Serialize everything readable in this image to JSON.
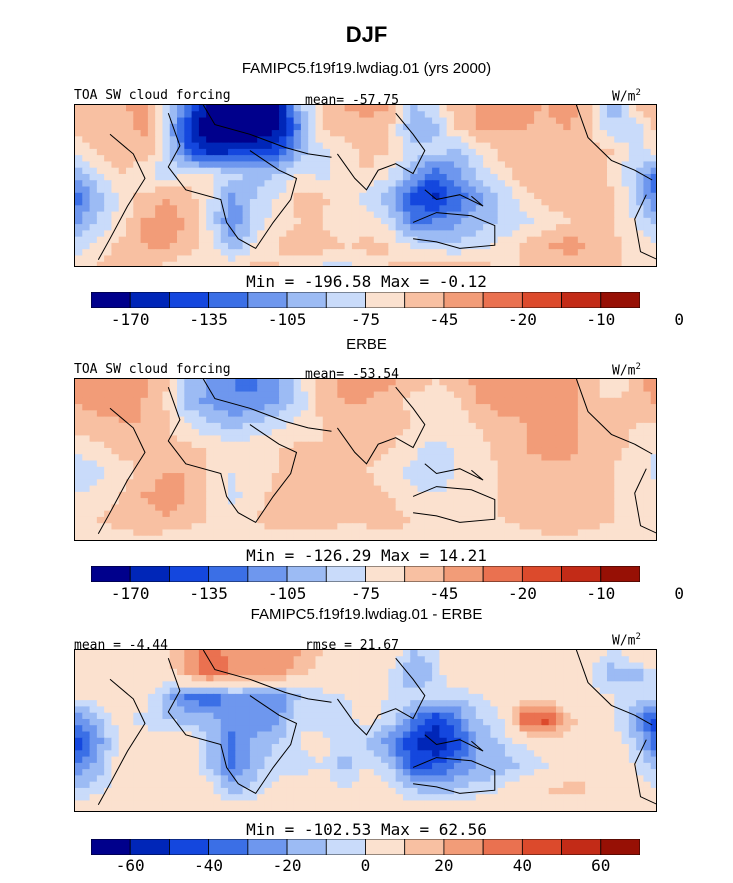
{
  "figure": {
    "title": "DJF",
    "top_title": "FAMIPC5.f19f19.lwdiag.01 (yrs 2000)",
    "units": "W/m",
    "units_sup": "2"
  },
  "palette": [
    "#00008c",
    "#0026b8",
    "#1447de",
    "#3b6fe6",
    "#6e97ee",
    "#9cbbf4",
    "#c9dbfa",
    "#fbe1cf",
    "#f8c0a2",
    "#f29c78",
    "#ea7150",
    "#dc4a2c",
    "#c32b17",
    "#971005"
  ],
  "chart_data": [
    {
      "type": "heatmap",
      "name": "model",
      "label": "TOA SW cloud forcing",
      "mean_text": "mean= -57.75",
      "min_max": "Min = -196.58 Max = -0.12",
      "colorbar_ticks": [
        "-170",
        "-135",
        "-105",
        "-75",
        "-45",
        "-20",
        "-10",
        "0"
      ],
      "field": [
        [
          -45,
          -45,
          -50,
          -30,
          -70,
          -120,
          -180,
          -185,
          -185,
          -170,
          -95,
          -60,
          -45,
          -40,
          -40,
          -90,
          -80,
          -50,
          -45,
          -40,
          -40,
          -45,
          -35,
          -60,
          -100,
          -60,
          -40
        ],
        [
          -55,
          -50,
          -60,
          -40,
          -85,
          -150,
          -190,
          -195,
          -195,
          -170,
          -120,
          -60,
          -50,
          -50,
          -60,
          -100,
          -95,
          -60,
          -45,
          -45,
          -45,
          -50,
          -45,
          -60,
          -90,
          -85,
          -55
        ],
        [
          -70,
          -60,
          -50,
          -45,
          -80,
          -130,
          -160,
          -150,
          -150,
          -140,
          -100,
          -80,
          -70,
          -55,
          -60,
          -80,
          -85,
          -95,
          -75,
          -55,
          -50,
          -45,
          -60,
          -50,
          -60,
          -80,
          -70
        ],
        [
          -100,
          -80,
          -60,
          -75,
          -80,
          -75,
          -70,
          -85,
          -95,
          -90,
          -70,
          -80,
          -70,
          -60,
          -75,
          -100,
          -135,
          -110,
          -85,
          -70,
          -50,
          -45,
          -45,
          -55,
          -65,
          -90,
          -130
        ],
        [
          -130,
          -100,
          -70,
          -55,
          -45,
          -50,
          -75,
          -110,
          -90,
          -75,
          -55,
          -55,
          -70,
          -80,
          -100,
          -140,
          -155,
          -130,
          -110,
          -90,
          -70,
          -55,
          -50,
          -50,
          -55,
          -85,
          -125
        ],
        [
          -110,
          -90,
          -70,
          -45,
          -40,
          -45,
          -80,
          -120,
          -85,
          -65,
          -60,
          -60,
          -75,
          -65,
          -80,
          -120,
          -120,
          -110,
          -95,
          -90,
          -80,
          -70,
          -60,
          -55,
          -60,
          -75,
          -95
        ],
        [
          -85,
          -70,
          -55,
          -45,
          -40,
          -50,
          -65,
          -100,
          -75,
          -60,
          -50,
          -50,
          -60,
          -55,
          -60,
          -80,
          -85,
          -90,
          -80,
          -70,
          -55,
          -45,
          -40,
          -45,
          -55,
          -65,
          -75
        ],
        [
          -70,
          -60,
          -50,
          -55,
          -65,
          -75,
          -70,
          -60,
          -55,
          -60,
          -70,
          -80,
          -80,
          -70,
          -60,
          -55,
          -50,
          -50,
          -55,
          -60,
          -60,
          -55,
          -50,
          -55,
          -60,
          -60,
          -60
        ]
      ]
    },
    {
      "type": "heatmap",
      "name": "obs",
      "title": "ERBE",
      "label": "TOA SW cloud forcing",
      "mean_text": "mean= -53.54",
      "min_max": "Min = -126.29 Max = 14.21",
      "colorbar_ticks": [
        "-170",
        "-135",
        "-105",
        "-75",
        "-45",
        "-20",
        "-10",
        "0"
      ],
      "field": [
        [
          -40,
          -40,
          -35,
          -40,
          -55,
          -90,
          -110,
          -120,
          -125,
          -110,
          -80,
          -50,
          -40,
          -40,
          -40,
          -50,
          -60,
          -50,
          -40,
          -35,
          -35,
          -40,
          -35,
          -55,
          -80,
          -50,
          -35
        ],
        [
          -45,
          -40,
          -45,
          -45,
          -60,
          -95,
          -110,
          -120,
          -115,
          -105,
          -85,
          -55,
          -45,
          -45,
          -50,
          -65,
          -70,
          -65,
          -45,
          -40,
          -40,
          -45,
          -40,
          -50,
          -60,
          -55,
          -40
        ],
        [
          -55,
          -50,
          -45,
          -45,
          -55,
          -75,
          -85,
          -95,
          -85,
          -80,
          -70,
          -60,
          -55,
          -50,
          -50,
          -60,
          -65,
          -70,
          -60,
          -50,
          -45,
          -40,
          -45,
          -45,
          -50,
          -60,
          -60
        ],
        [
          -75,
          -65,
          -55,
          -55,
          -55,
          -55,
          -60,
          -70,
          -65,
          -60,
          -55,
          -60,
          -60,
          -55,
          -60,
          -70,
          -80,
          -75,
          -65,
          -55,
          -45,
          -40,
          -40,
          -50,
          -55,
          -65,
          -75
        ],
        [
          -85,
          -80,
          -70,
          -55,
          -45,
          -45,
          -60,
          -75,
          -70,
          -60,
          -50,
          -50,
          -55,
          -60,
          -65,
          -80,
          -85,
          -75,
          -65,
          -60,
          -55,
          -50,
          -50,
          -55,
          -60,
          -70,
          -80
        ],
        [
          -75,
          -70,
          -60,
          -45,
          -40,
          -45,
          -65,
          -80,
          -65,
          -55,
          -50,
          -50,
          -55,
          -55,
          -60,
          -70,
          -75,
          -70,
          -65,
          -60,
          -55,
          -55,
          -55,
          -55,
          -60,
          -65,
          -70
        ],
        [
          -65,
          -60,
          -55,
          -50,
          -45,
          -50,
          -60,
          -65,
          -60,
          -55,
          -50,
          -50,
          -55,
          -55,
          -55,
          -60,
          -65,
          -70,
          -65,
          -60,
          -55,
          -50,
          -50,
          -55,
          -60,
          -60,
          -60
        ],
        [
          -70,
          -70,
          -65,
          -65,
          -70,
          -75,
          -70,
          -65,
          -65,
          -65,
          -70,
          -75,
          -75,
          -70,
          -65,
          -65,
          -60,
          -60,
          -65,
          -70,
          -70,
          -65,
          -65,
          -65,
          -65,
          -65,
          -70
        ]
      ]
    },
    {
      "type": "heatmap",
      "name": "difference",
      "title": "FAMIPC5.f19f19.lwdiag.01 - ERBE",
      "mean_text": "mean = -4.44",
      "rmse_text": "rmse = 21.67",
      "min_max": "Min = -102.53 Max = 62.56",
      "colorbar_ticks": [
        "-60",
        "-40",
        "-20",
        "0",
        "20",
        "40",
        "60"
      ],
      "field": [
        [
          5,
          5,
          10,
          5,
          10,
          25,
          35,
          25,
          20,
          30,
          20,
          10,
          5,
          5,
          5,
          -20,
          -15,
          5,
          5,
          5,
          5,
          5,
          0,
          0,
          -15,
          10,
          5
        ],
        [
          5,
          10,
          10,
          5,
          0,
          20,
          40,
          30,
          30,
          25,
          15,
          5,
          0,
          0,
          -10,
          -30,
          -20,
          5,
          10,
          5,
          5,
          0,
          0,
          -10,
          -25,
          -25,
          -10
        ],
        [
          -10,
          -5,
          5,
          0,
          -25,
          -40,
          -50,
          -35,
          -40,
          -40,
          -20,
          -15,
          -10,
          -5,
          -10,
          -15,
          -15,
          -20,
          -10,
          -5,
          0,
          5,
          -10,
          -5,
          -10,
          -15,
          -20
        ],
        [
          -40,
          -25,
          -5,
          -15,
          -20,
          -25,
          -25,
          -35,
          -40,
          -35,
          -10,
          -15,
          -15,
          -5,
          -15,
          -35,
          -60,
          -40,
          -20,
          -10,
          40,
          45,
          20,
          -5,
          -10,
          -30,
          -60
        ],
        [
          -60,
          -35,
          -5,
          0,
          5,
          0,
          -20,
          -45,
          -25,
          -20,
          -10,
          -5,
          -15,
          -20,
          -35,
          -60,
          -70,
          -55,
          -30,
          -20,
          -10,
          0,
          0,
          5,
          0,
          -20,
          -50
        ],
        [
          -40,
          -25,
          -5,
          5,
          5,
          0,
          -20,
          -45,
          -25,
          -15,
          -15,
          -10,
          -25,
          -10,
          -20,
          -50,
          -50,
          -40,
          -30,
          -25,
          -20,
          -10,
          0,
          5,
          5,
          -10,
          -25
        ],
        [
          -20,
          -15,
          -5,
          0,
          5,
          5,
          -5,
          -25,
          -15,
          -5,
          0,
          5,
          -10,
          0,
          -5,
          -20,
          -25,
          -20,
          -15,
          -10,
          5,
          10,
          15,
          10,
          5,
          -5,
          -10
        ],
        [
          0,
          5,
          10,
          5,
          5,
          0,
          0,
          0,
          0,
          0,
          0,
          0,
          0,
          0,
          0,
          0,
          0,
          0,
          0,
          0,
          0,
          0,
          0,
          0,
          0,
          5,
          5
        ]
      ]
    }
  ]
}
